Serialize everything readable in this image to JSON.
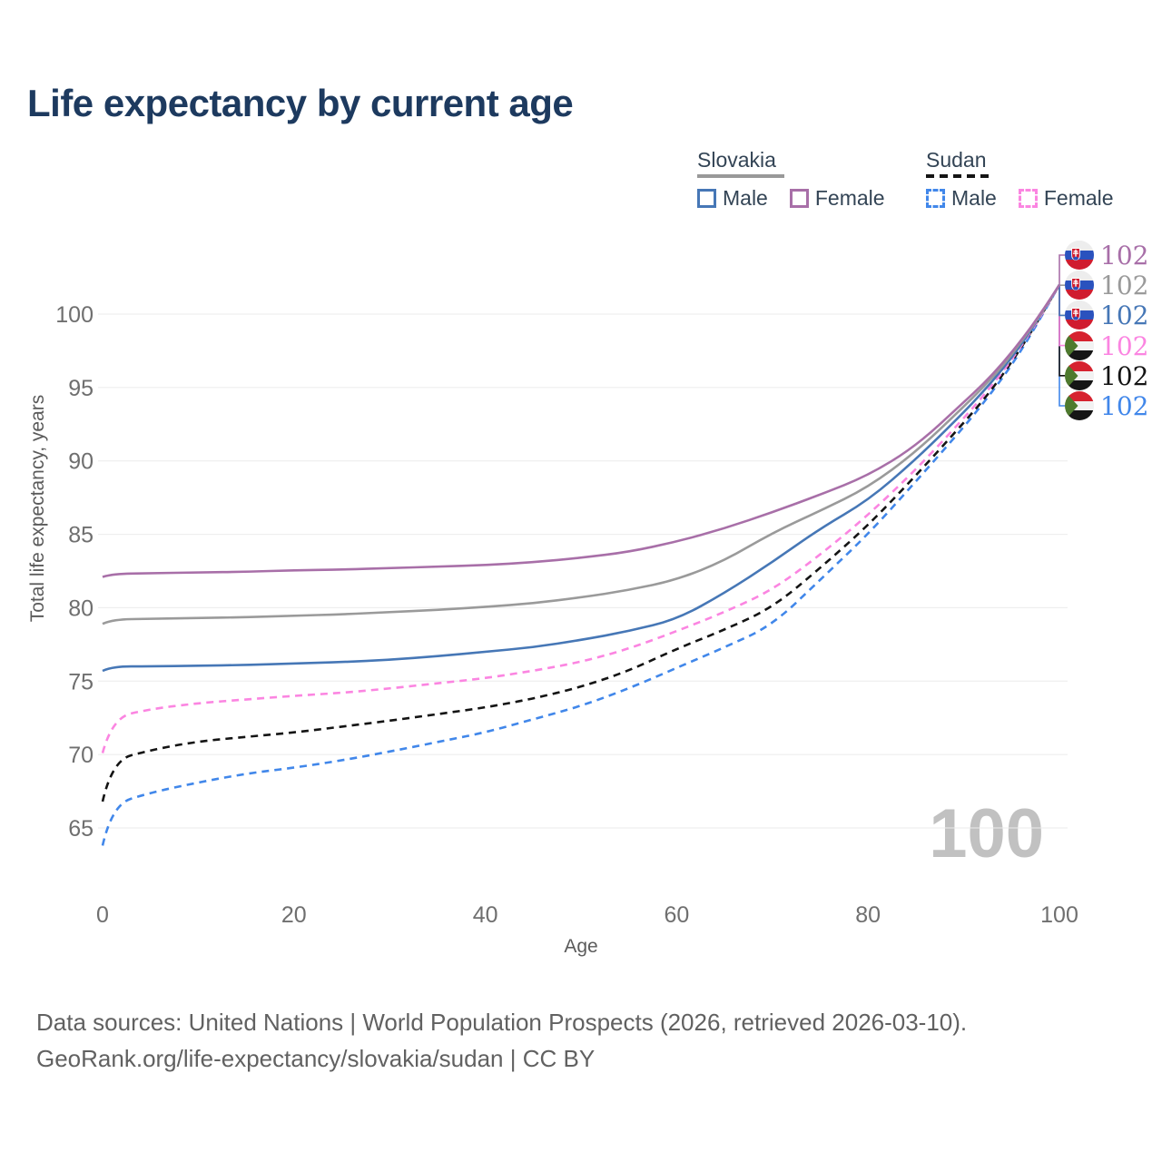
{
  "title": "Life expectancy by current age",
  "watermark": "100",
  "legend": {
    "groups": [
      {
        "label": "Slovakia",
        "line_style": "solid",
        "underline_color": "#999999",
        "items": [
          {
            "label": "Male",
            "color": "#4677b6",
            "dashed": false
          },
          {
            "label": "Female",
            "color": "#a86fa8",
            "dashed": false
          }
        ]
      },
      {
        "label": "Sudan",
        "line_style": "dashed",
        "underline_color": "#141414",
        "items": [
          {
            "label": "Male",
            "color": "#4187ea",
            "dashed": true
          },
          {
            "label": "Female",
            "color": "#fb85e1",
            "dashed": true
          }
        ]
      }
    ]
  },
  "footer": {
    "line1": "Data sources: United Nations | World Population Prospects (2026, retrieved 2026-03-10).",
    "line2": "GeoRank.org/life-expectancy/slovakia/sudan | CC BY"
  },
  "chart_data": {
    "type": "line",
    "title": "Life expectancy by current age",
    "xlabel": "Age",
    "ylabel": "Total life expectancy, years",
    "x_ticks": [
      0,
      20,
      40,
      60,
      80,
      100
    ],
    "y_ticks": [
      65,
      70,
      75,
      80,
      85,
      90,
      95,
      100
    ],
    "xlim": [
      0,
      100
    ],
    "ylim": [
      63,
      104
    ],
    "grid": "horizontal",
    "legend_position": "top-right",
    "x": [
      0,
      1,
      5,
      10,
      15,
      20,
      25,
      30,
      35,
      40,
      45,
      50,
      55,
      60,
      65,
      70,
      75,
      80,
      85,
      90,
      92,
      94,
      96,
      98,
      100
    ],
    "series": [
      {
        "name": "Slovakia Female",
        "country": "slovakia",
        "sex": "female",
        "color": "#a86fa8",
        "dashed": false,
        "end_label": "102",
        "values": [
          82.1,
          82.3,
          82.35,
          82.4,
          82.45,
          82.55,
          82.6,
          82.7,
          82.8,
          82.9,
          83.1,
          83.4,
          83.8,
          84.5,
          85.4,
          86.5,
          87.7,
          89.0,
          91.0,
          94.0,
          95.2,
          96.6,
          98.2,
          100.0,
          102.0
        ]
      },
      {
        "name": "Slovakia",
        "country": "slovakia",
        "sex": "both",
        "color": "#9a9a9a",
        "dashed": false,
        "end_label": "102",
        "values": [
          78.9,
          79.2,
          79.25,
          79.3,
          79.35,
          79.45,
          79.55,
          79.7,
          79.85,
          80.05,
          80.3,
          80.7,
          81.2,
          81.9,
          83.2,
          85.1,
          86.6,
          88.2,
          90.6,
          93.7,
          95.0,
          96.4,
          98.1,
          99.9,
          102.0
        ]
      },
      {
        "name": "Slovakia Male",
        "country": "slovakia",
        "sex": "male",
        "color": "#4677b6",
        "dashed": false,
        "end_label": "102",
        "values": [
          75.7,
          76.0,
          76.0,
          76.05,
          76.1,
          76.2,
          76.3,
          76.45,
          76.7,
          77.0,
          77.3,
          77.8,
          78.4,
          79.2,
          81.0,
          83.1,
          85.4,
          87.3,
          90.1,
          93.3,
          94.7,
          96.2,
          97.9,
          99.9,
          102.0
        ]
      },
      {
        "name": "Sudan Female",
        "country": "sudan",
        "sex": "female",
        "color": "#fb85e1",
        "dashed": true,
        "end_label": "102",
        "values": [
          70.1,
          72.5,
          73.1,
          73.5,
          73.75,
          74.0,
          74.2,
          74.5,
          74.85,
          75.2,
          75.7,
          76.3,
          77.2,
          78.4,
          79.7,
          81.2,
          83.6,
          86.3,
          89.4,
          92.9,
          94.4,
          96.0,
          97.8,
          99.8,
          102.0
        ]
      },
      {
        "name": "Sudan",
        "country": "sudan",
        "sex": "both",
        "color": "#141414",
        "dashed": true,
        "end_label": "102",
        "values": [
          66.8,
          69.6,
          70.3,
          70.9,
          71.2,
          71.5,
          71.9,
          72.3,
          72.75,
          73.2,
          73.8,
          74.6,
          75.7,
          77.2,
          78.5,
          80.0,
          82.7,
          85.6,
          89.0,
          92.6,
          94.1,
          95.8,
          97.7,
          99.8,
          102.0
        ]
      },
      {
        "name": "Sudan Male",
        "country": "sudan",
        "sex": "male",
        "color": "#4187ea",
        "dashed": true,
        "end_label": "102",
        "values": [
          63.8,
          66.6,
          67.4,
          68.1,
          68.7,
          69.1,
          69.6,
          70.2,
          70.85,
          71.5,
          72.4,
          73.3,
          74.5,
          75.9,
          77.3,
          78.8,
          81.9,
          85.0,
          88.6,
          92.3,
          93.9,
          95.6,
          97.5,
          99.7,
          102.0
        ]
      }
    ]
  }
}
